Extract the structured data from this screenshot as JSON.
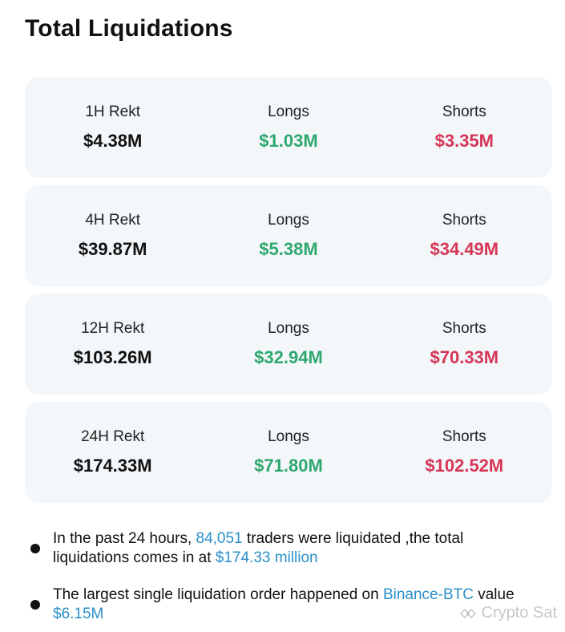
{
  "title": "Total Liquidations",
  "cards": [
    {
      "period_label": "1H Rekt",
      "period_value": "$4.38M",
      "longs_label": "Longs",
      "longs_value": "$1.03M",
      "shorts_label": "Shorts",
      "shorts_value": "$3.35M"
    },
    {
      "period_label": "4H Rekt",
      "period_value": "$39.87M",
      "longs_label": "Longs",
      "longs_value": "$5.38M",
      "shorts_label": "Shorts",
      "shorts_value": "$34.49M"
    },
    {
      "period_label": "12H Rekt",
      "period_value": "$103.26M",
      "longs_label": "Longs",
      "longs_value": "$32.94M",
      "shorts_label": "Shorts",
      "shorts_value": "$70.33M"
    },
    {
      "period_label": "24H Rekt",
      "period_value": "$174.33M",
      "longs_label": "Longs",
      "longs_value": "$71.80M",
      "shorts_label": "Shorts",
      "shorts_value": "$102.52M"
    }
  ],
  "bullets": {
    "b1": {
      "part1": "In the past 24 hours, ",
      "traders": "84,051",
      "part2": " traders were liquidated ,the total liquidations comes in at ",
      "total": "$174.33 million"
    },
    "b2": {
      "part1": "The largest single liquidation order happened on ",
      "exchange": "Binance-BTC",
      "part2": " value ",
      "value": "$6.15M"
    }
  },
  "watermark": "Crypto Sat",
  "colors": {
    "long": "#2ea86e",
    "short": "#d63656",
    "highlight": "#2a8fc9",
    "card_bg": "#f3f7fa"
  }
}
